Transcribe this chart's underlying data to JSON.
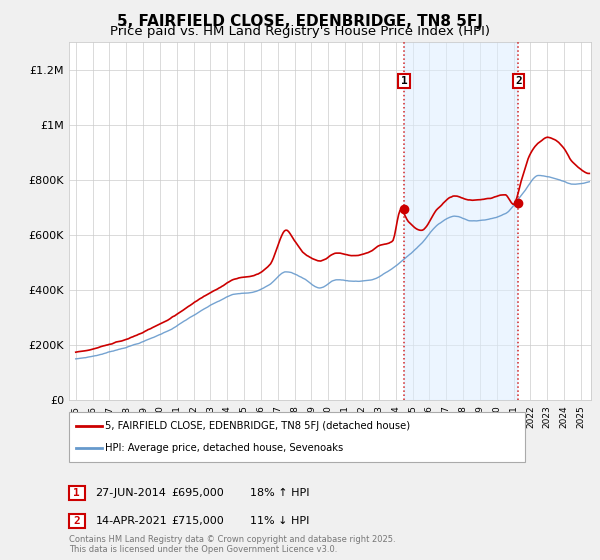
{
  "title": "5, FAIRFIELD CLOSE, EDENBRIDGE, TN8 5FJ",
  "subtitle": "Price paid vs. HM Land Registry's House Price Index (HPI)",
  "ylim": [
    0,
    1300000
  ],
  "yticks": [
    0,
    200000,
    400000,
    600000,
    800000,
    1000000,
    1200000
  ],
  "ytick_labels": [
    "£0",
    "£200K",
    "£400K",
    "£600K",
    "£800K",
    "£1M",
    "£1.2M"
  ],
  "red_line_color": "#cc0000",
  "blue_line_color": "#6699cc",
  "blue_fill_color": "#ddeeff",
  "marker1_x": 2014.5,
  "marker1_price": 695000,
  "marker1_date_str": "27-JUN-2014",
  "marker1_pct": "18% ↑ HPI",
  "marker2_x": 2021.28,
  "marker2_price": 715000,
  "marker2_date_str": "14-APR-2021",
  "marker2_pct": "11% ↓ HPI",
  "legend_line1": "5, FAIRFIELD CLOSE, EDENBRIDGE, TN8 5FJ (detached house)",
  "legend_line2": "HPI: Average price, detached house, Sevenoaks",
  "footer": "Contains HM Land Registry data © Crown copyright and database right 2025.\nThis data is licensed under the Open Government Licence v3.0.",
  "bg_color": "#f0f0f0",
  "plot_bg_color": "#ffffff",
  "grid_color": "#cccccc",
  "title_fontsize": 11,
  "subtitle_fontsize": 9.5
}
